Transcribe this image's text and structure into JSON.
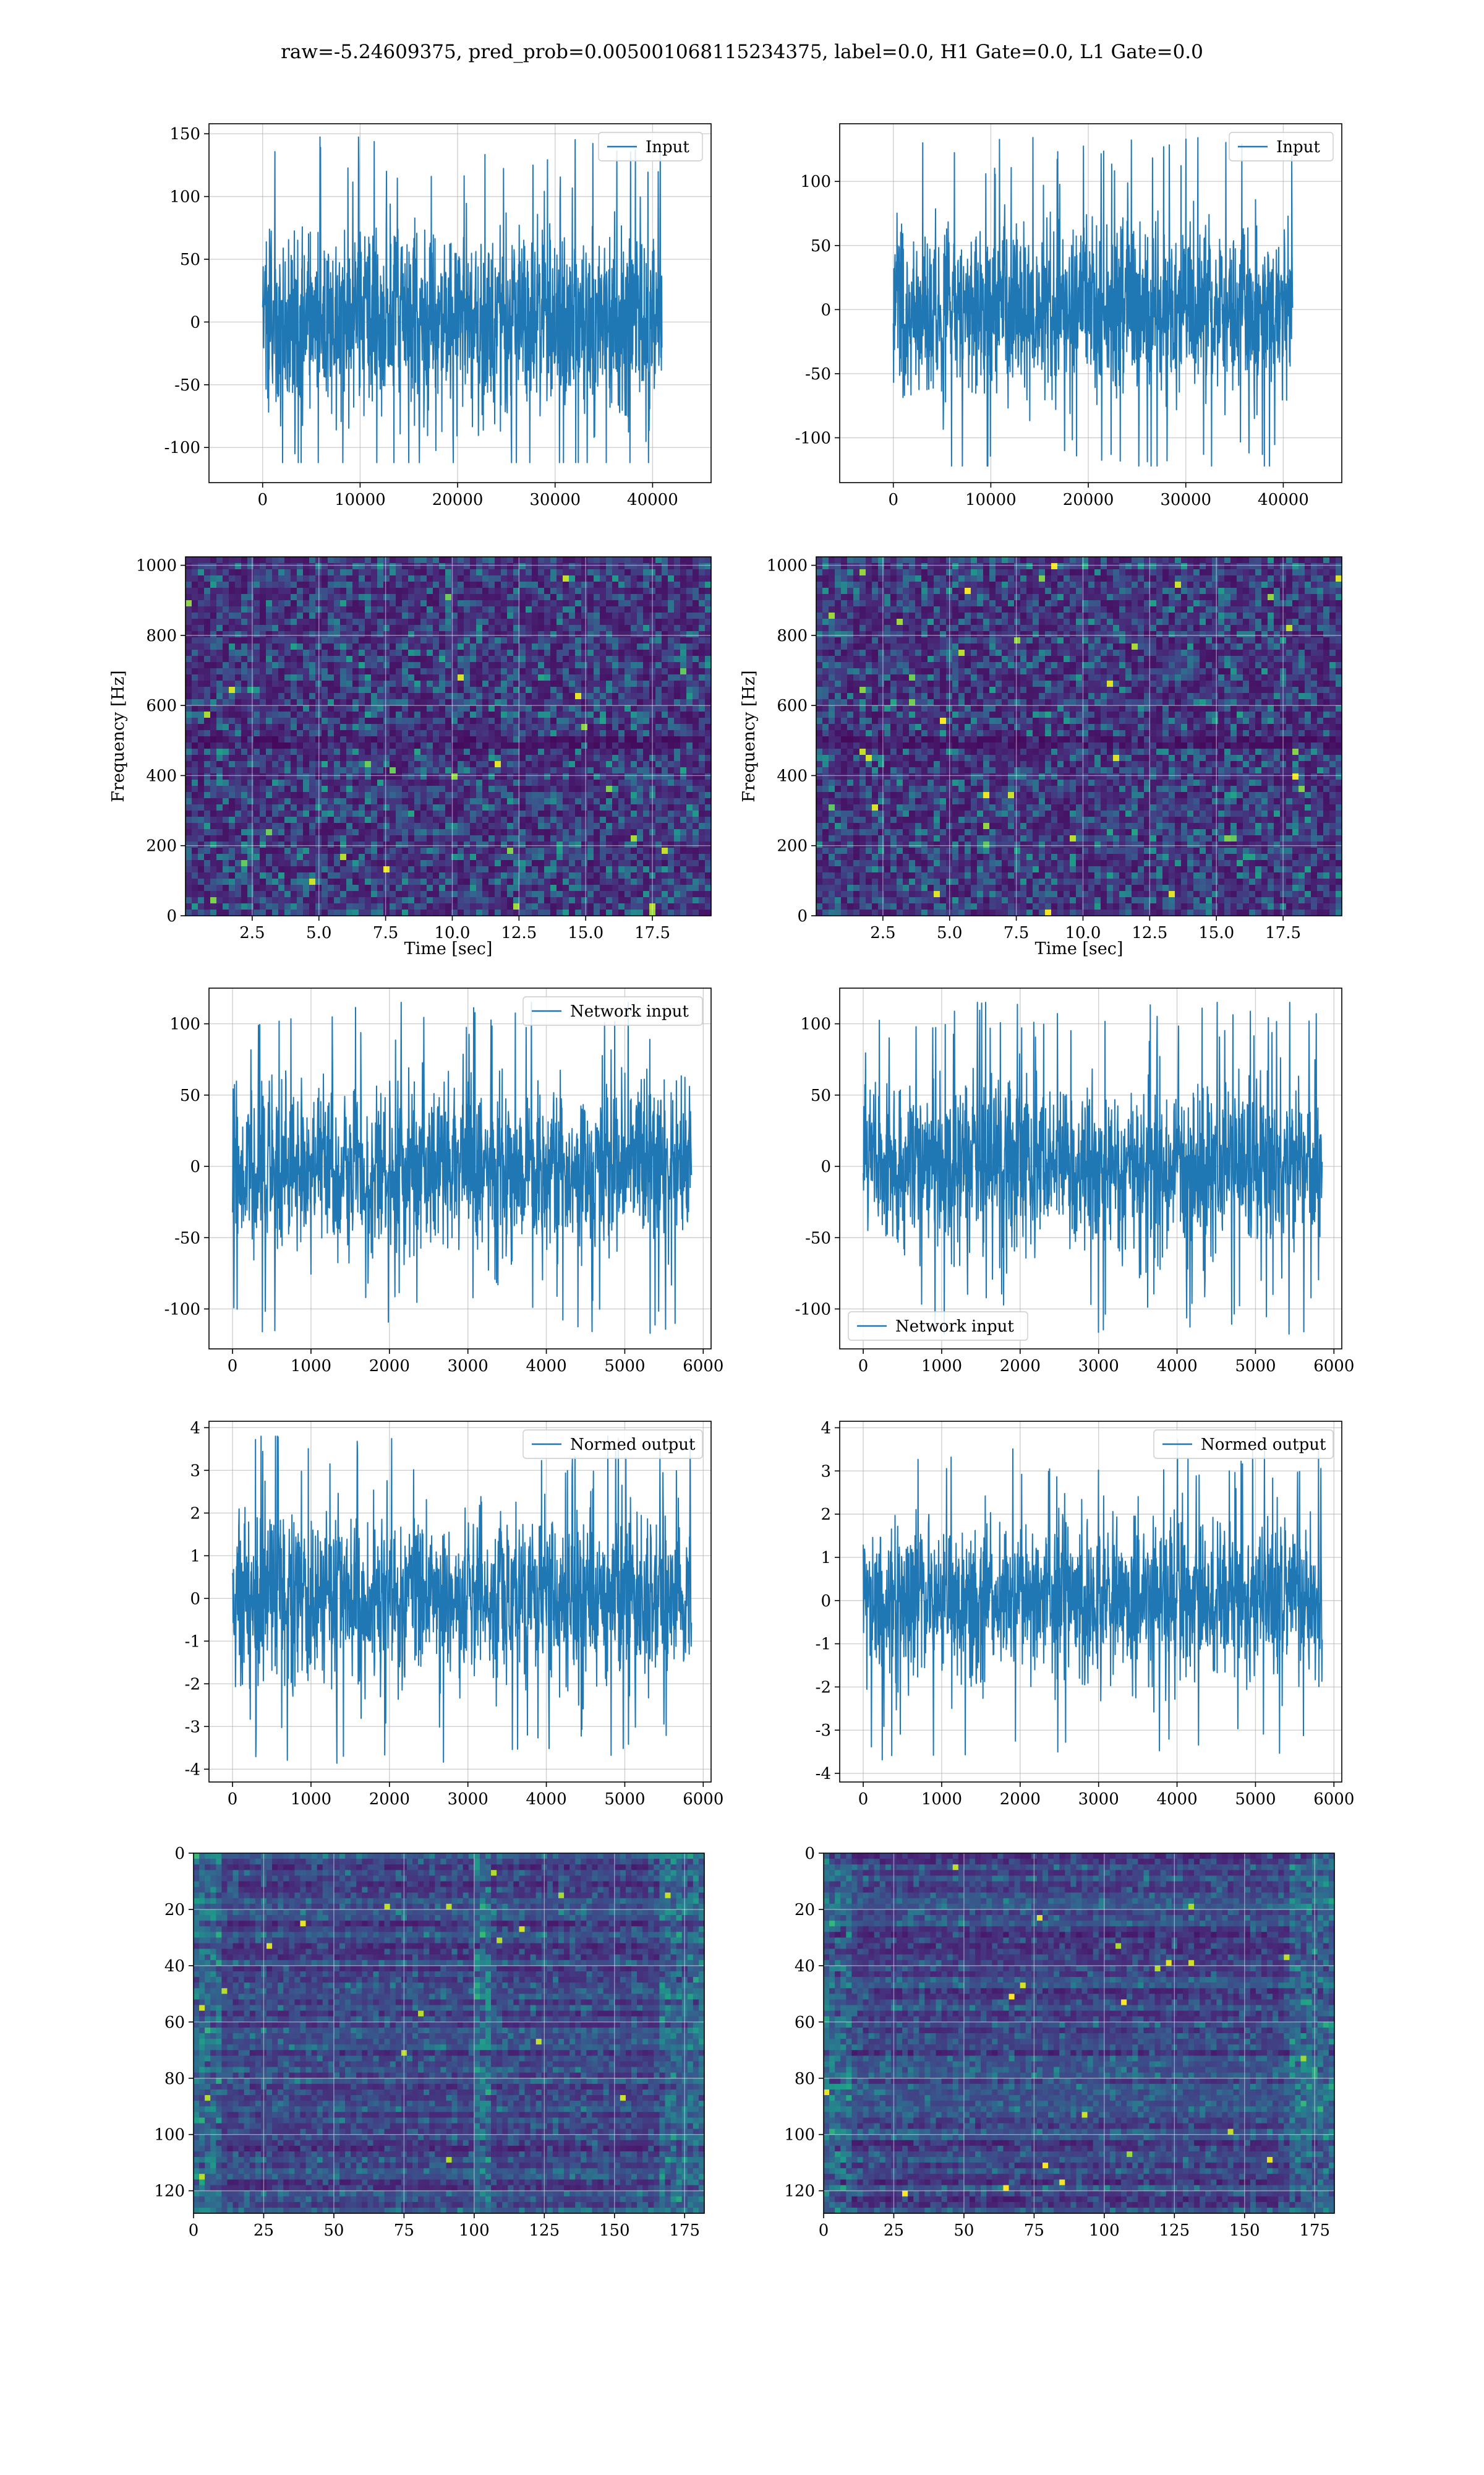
{
  "figure": {
    "title": "raw=-5.24609375, pred_prob=0.005001068115234375, label=0.0, H1 Gate=0.0, L1 Gate=0.0",
    "colors": {
      "line": "#1f77b4",
      "grid": "#b0b0b0",
      "viridis_dark": "#440154",
      "viridis_mid": "#21918c",
      "viridis_bright": "#fde725"
    }
  },
  "chart_data": [
    {
      "id": "input_h1",
      "type": "line",
      "legend": "Input",
      "legend_loc": "upper right",
      "xlim": [
        -5500,
        46000
      ],
      "ylim": [
        -128,
        158
      ],
      "xticks": [
        0,
        10000,
        20000,
        30000,
        40000
      ],
      "yticks": [
        -100,
        -50,
        0,
        50,
        100,
        150
      ],
      "x_range": [
        0,
        40960
      ],
      "y_range_observed": [
        -112,
        148
      ],
      "grid": true
    },
    {
      "id": "input_l1",
      "type": "line",
      "legend": "Input",
      "legend_loc": "upper right",
      "xlim": [
        -5500,
        46000
      ],
      "ylim": [
        -135,
        145
      ],
      "xticks": [
        0,
        10000,
        20000,
        30000,
        40000
      ],
      "yticks": [
        -100,
        -50,
        0,
        50,
        100
      ],
      "x_range": [
        0,
        40960
      ],
      "y_range_observed": [
        -122,
        135
      ],
      "grid": true
    },
    {
      "id": "spec_h1",
      "type": "heatmap",
      "xlabel": "Time [sec]",
      "ylabel": "Frequency [Hz]",
      "xlim": [
        0,
        19.7
      ],
      "ylim": [
        0,
        1024
      ],
      "xticks": [
        2.5,
        5.0,
        7.5,
        10.0,
        12.5,
        15.0,
        17.5
      ],
      "yticks": [
        0,
        200,
        400,
        600,
        800,
        1000
      ],
      "colormap": "viridis",
      "grid": true
    },
    {
      "id": "spec_l1",
      "type": "heatmap",
      "xlabel": "Time [sec]",
      "ylabel": "Frequency [Hz]",
      "xlim": [
        0,
        19.7
      ],
      "ylim": [
        0,
        1024
      ],
      "xticks": [
        2.5,
        5.0,
        7.5,
        10.0,
        12.5,
        15.0,
        17.5
      ],
      "yticks": [
        0,
        200,
        400,
        600,
        800,
        1000
      ],
      "colormap": "viridis",
      "grid": true
    },
    {
      "id": "net_h1",
      "type": "line",
      "legend": "Network input",
      "legend_loc": "upper right",
      "xlim": [
        -300,
        6100
      ],
      "ylim": [
        -128,
        125
      ],
      "xticks": [
        0,
        1000,
        2000,
        3000,
        4000,
        5000,
        6000
      ],
      "yticks": [
        -100,
        -50,
        0,
        50,
        100
      ],
      "x_range": [
        0,
        5850
      ],
      "y_range_observed": [
        -118,
        115
      ],
      "grid": true
    },
    {
      "id": "net_l1",
      "type": "line",
      "legend": "Network input",
      "legend_loc": "lower left",
      "xlim": [
        -300,
        6100
      ],
      "ylim": [
        -128,
        125
      ],
      "xticks": [
        0,
        1000,
        2000,
        3000,
        4000,
        5000,
        6000
      ],
      "yticks": [
        -100,
        -50,
        0,
        50,
        100
      ],
      "x_range": [
        0,
        5850
      ],
      "y_range_observed": [
        -118,
        115
      ],
      "grid": true
    },
    {
      "id": "norm_h1",
      "type": "line",
      "legend": "Normed output",
      "legend_loc": "upper right",
      "xlim": [
        -300,
        6100
      ],
      "ylim": [
        -4.3,
        4.15
      ],
      "xticks": [
        0,
        1000,
        2000,
        3000,
        4000,
        5000,
        6000
      ],
      "yticks": [
        -4,
        -3,
        -2,
        -1,
        0,
        1,
        2,
        3,
        4
      ],
      "x_range": [
        0,
        5850
      ],
      "y_range_observed": [
        -3.9,
        3.8
      ],
      "grid": true
    },
    {
      "id": "norm_l1",
      "type": "line",
      "legend": "Normed output",
      "legend_loc": "upper right",
      "xlim": [
        -300,
        6100
      ],
      "ylim": [
        -4.2,
        4.15
      ],
      "xticks": [
        0,
        1000,
        2000,
        3000,
        4000,
        5000,
        6000
      ],
      "yticks": [
        -4,
        -3,
        -2,
        -1,
        0,
        1,
        2,
        3,
        4
      ],
      "x_range": [
        0,
        5850
      ],
      "y_range_observed": [
        -3.7,
        3.8
      ],
      "grid": true
    },
    {
      "id": "feat_h1",
      "type": "heatmap",
      "colormap": "viridis",
      "xlim": [
        0,
        182
      ],
      "ylim": [
        128,
        0
      ],
      "xticks": [
        0,
        25,
        50,
        75,
        100,
        125,
        150,
        175
      ],
      "yticks": [
        0,
        20,
        40,
        60,
        80,
        100,
        120
      ],
      "grid": true
    },
    {
      "id": "feat_l1",
      "type": "heatmap",
      "colormap": "viridis",
      "xlim": [
        0,
        182
      ],
      "ylim": [
        128,
        0
      ],
      "xticks": [
        0,
        25,
        50,
        75,
        100,
        125,
        150,
        175
      ],
      "yticks": [
        0,
        20,
        40,
        60,
        80,
        100,
        120
      ],
      "grid": true
    }
  ]
}
